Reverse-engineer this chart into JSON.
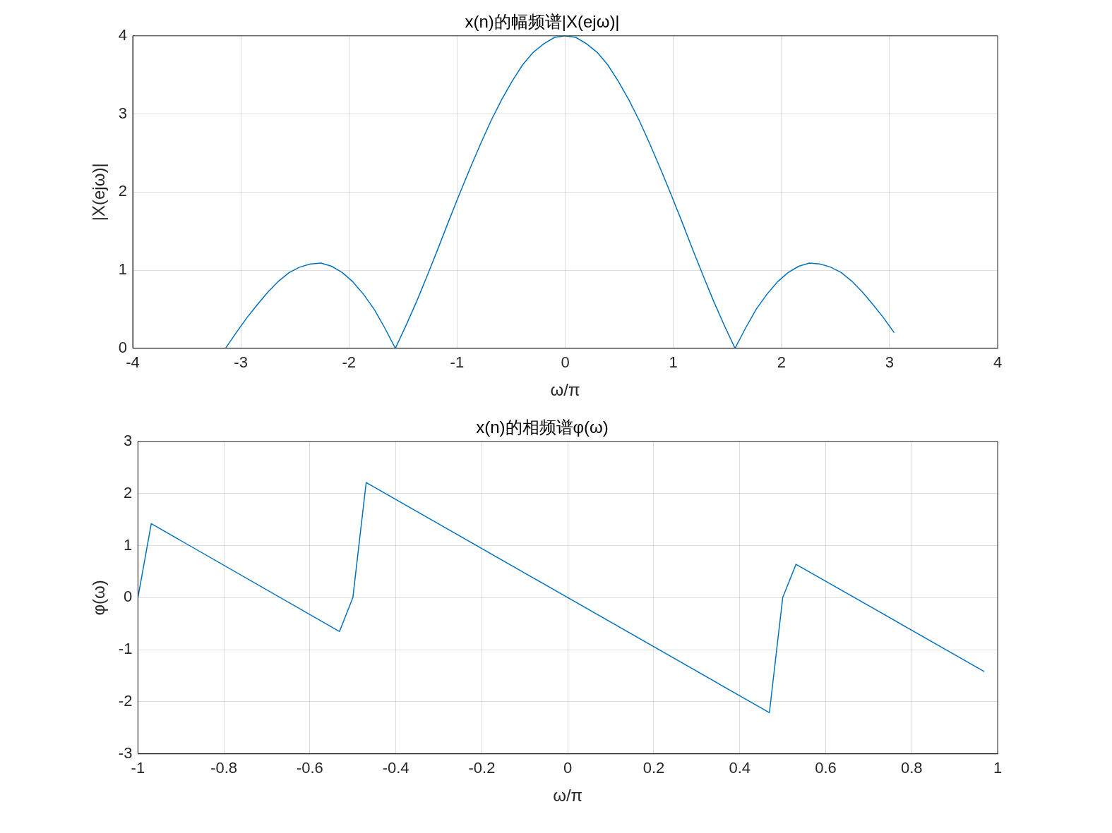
{
  "chart_data": [
    {
      "type": "line",
      "title": "x(n)的幅频谱|X(ejω)|",
      "xlabel": "ω/π",
      "ylabel": "|X(ejω)|",
      "xlim": [
        -4,
        4
      ],
      "xticks": [
        -4,
        -3,
        -2,
        -1,
        0,
        1,
        2,
        3,
        4
      ],
      "ylim": [
        0,
        4
      ],
      "yticks": [
        0,
        1,
        2,
        3,
        4
      ],
      "grid": true,
      "legend": false,
      "marker": "none",
      "line_style": "solid",
      "x": [
        -3.142,
        -3.043,
        -2.945,
        -2.847,
        -2.749,
        -2.651,
        -2.553,
        -2.454,
        -2.356,
        -2.258,
        -2.16,
        -2.062,
        -1.963,
        -1.865,
        -1.767,
        -1.669,
        -1.571,
        -1.473,
        -1.374,
        -1.276,
        -1.178,
        -1.08,
        -0.982,
        -0.884,
        -0.785,
        -0.687,
        -0.589,
        -0.491,
        -0.393,
        -0.295,
        -0.196,
        -0.098,
        0,
        0.098,
        0.196,
        0.295,
        0.393,
        0.491,
        0.589,
        0.687,
        0.785,
        0.884,
        0.982,
        1.08,
        1.178,
        1.276,
        1.374,
        1.473,
        1.571,
        1.669,
        1.767,
        1.865,
        1.963,
        2.062,
        2.16,
        2.258,
        2.356,
        2.454,
        2.553,
        2.651,
        2.749,
        2.847,
        2.945,
        3.043
      ],
      "series": [
        {
          "color": "#0072bd",
          "values": [
            0,
            0.2,
            0.39,
            0.56,
            0.72,
            0.86,
            0.97,
            1.04,
            1.08,
            1.09,
            1.05,
            0.97,
            0.85,
            0.69,
            0.5,
            0.26,
            0,
            0.29,
            0.6,
            0.93,
            1.27,
            1.62,
            1.96,
            2.29,
            2.61,
            2.91,
            3.18,
            3.42,
            3.63,
            3.79,
            3.9,
            3.98,
            4,
            3.98,
            3.9,
            3.79,
            3.63,
            3.42,
            3.18,
            2.91,
            2.61,
            2.29,
            1.96,
            1.62,
            1.27,
            0.93,
            0.6,
            0.29,
            0,
            0.26,
            0.5,
            0.69,
            0.85,
            0.97,
            1.05,
            1.09,
            1.08,
            1.04,
            0.97,
            0.86,
            0.72,
            0.56,
            0.39,
            0.2
          ]
        }
      ]
    },
    {
      "type": "line",
      "title": "x(n)的相频谱φ(ω)",
      "xlabel": "ω/π",
      "ylabel": "φ(ω)",
      "xlim": [
        -1,
        1
      ],
      "xticks": [
        -1,
        -0.8,
        -0.6,
        -0.4,
        -0.2,
        0,
        0.2,
        0.4,
        0.6,
        0.8,
        1
      ],
      "ylim": [
        -3,
        3
      ],
      "yticks": [
        -3,
        -2,
        -1,
        0,
        1,
        2,
        3
      ],
      "grid": true,
      "legend": false,
      "marker": "none",
      "line_style": "solid",
      "x": [
        -1,
        -0.969,
        -0.531,
        -0.5,
        -0.469,
        0.469,
        0.5,
        0.531,
        0.969
      ],
      "series": [
        {
          "color": "#0072bd",
          "values": [
            0,
            1.42,
            -0.65,
            0,
            2.21,
            -2.21,
            0,
            0.64,
            -1.42
          ]
        }
      ]
    }
  ]
}
